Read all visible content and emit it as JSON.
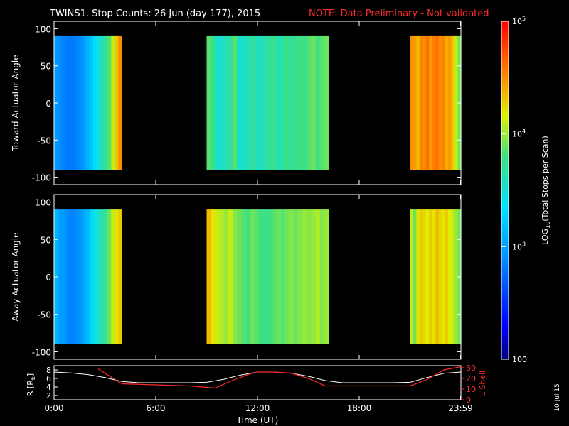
{
  "title_main": "TWINS1. Stop Counts: 26 Jun (day 177), 2015",
  "title_note": "NOTE: Data Preliminary - Not validated",
  "colors": {
    "note": "#ff2a2a",
    "r_line": "#ffffff",
    "l_line": "#ff2a2a"
  },
  "generated_date": "10 Jul 15",
  "colorbar": {
    "label": "LOG10(Total Stops per Scan)",
    "label_prefix": "LOG",
    "label_sub": "10",
    "label_suffix": "(Total Stops per Scan)",
    "scale": "log",
    "range": [
      100,
      100000
    ],
    "ticks": [
      {
        "value": 100,
        "label": "100"
      },
      {
        "value": 1000,
        "label": "10",
        "exp": "3"
      },
      {
        "value": 10000,
        "label": "10",
        "exp": "4"
      },
      {
        "value": 100000,
        "label": "10",
        "exp": "5"
      }
    ]
  },
  "chart_data": [
    {
      "type": "heatmap",
      "ylabel": "Toward Actuator Angle",
      "ylim": [
        -110,
        110
      ],
      "y_ticks": [
        "100",
        "50",
        "0",
        "-50",
        "-100"
      ],
      "y_tick_values": [
        100,
        50,
        0,
        -50,
        -100
      ],
      "data_angle_range": [
        -90,
        90
      ],
      "x_range_hours": [
        0,
        24
      ],
      "segments": [
        {
          "start_hour": 0.0,
          "end_hour": 4.0,
          "log_profile": [
            2.95,
            2.9,
            2.85,
            2.82,
            2.8,
            2.82,
            2.85,
            2.9,
            3.0,
            3.1,
            3.2,
            3.35,
            3.5,
            3.6,
            3.7,
            3.85,
            4.1,
            4.3,
            4.5
          ]
        },
        {
          "start_hour": 9.0,
          "end_hour": 16.2,
          "log_profile": [
            3.85,
            3.75,
            3.5,
            3.55,
            3.6,
            3.7,
            3.85,
            3.5,
            3.55,
            3.6,
            3.7,
            3.6,
            3.55,
            3.65,
            3.7,
            3.75,
            3.6,
            3.65,
            3.8,
            3.7,
            3.75,
            3.8,
            3.75,
            3.85,
            3.9,
            3.8,
            3.85,
            3.9
          ]
        },
        {
          "start_hour": 21.0,
          "end_hour": 24.0,
          "log_profile": [
            4.5,
            4.45,
            4.35,
            4.55,
            4.5,
            4.6,
            4.45,
            4.55,
            4.6,
            4.5,
            4.55,
            4.4,
            4.45,
            4.3,
            4.1,
            3.9
          ]
        }
      ]
    },
    {
      "type": "heatmap",
      "ylabel": "Away Actuator Angle",
      "ylim": [
        -110,
        110
      ],
      "y_ticks": [
        "100",
        "50",
        "0",
        "-50",
        "-100"
      ],
      "y_tick_values": [
        100,
        50,
        0,
        -50,
        -100
      ],
      "data_angle_range": [
        -90,
        90
      ],
      "x_range_hours": [
        0,
        24
      ],
      "segments": [
        {
          "start_hour": 0.0,
          "end_hour": 4.0,
          "log_profile": [
            3.1,
            3.0,
            2.95,
            2.9,
            2.85,
            2.85,
            2.9,
            2.95,
            3.05,
            3.15,
            3.3,
            3.45,
            3.55,
            3.65,
            3.75,
            3.9,
            4.1,
            4.2,
            4.3
          ]
        },
        {
          "start_hour": 9.0,
          "end_hour": 16.2,
          "log_profile": [
            4.35,
            4.2,
            4.1,
            4.05,
            4.0,
            4.1,
            3.95,
            3.9,
            3.85,
            3.8,
            3.9,
            3.85,
            3.8,
            3.75,
            3.8,
            3.85,
            3.9,
            3.85,
            3.9,
            3.95,
            3.9,
            3.95,
            4.0,
            3.95,
            4.0,
            4.05,
            3.95,
            4.0
          ]
        },
        {
          "start_hour": 21.0,
          "end_hour": 24.0,
          "log_profile": [
            4.1,
            3.9,
            4.2,
            4.3,
            4.25,
            4.15,
            4.3,
            4.2,
            4.35,
            4.25,
            4.2,
            4.3,
            4.15,
            4.1,
            4.0,
            3.9
          ]
        }
      ]
    },
    {
      "type": "line",
      "xlabel": "Time (UT)",
      "x_ticks": [
        "0:00",
        "6:00",
        "12:00",
        "18:00",
        "23:59"
      ],
      "x_tick_values": [
        0,
        6,
        12,
        18,
        23.98
      ],
      "y_left_label": "R [RE]",
      "y_left_label_main": "R [R",
      "y_left_label_sub": "E",
      "y_left_label_end": "]",
      "y_left_ticks": [
        "8",
        "6",
        "4",
        "2"
      ],
      "y_left_tick_values": [
        8,
        6,
        4,
        2
      ],
      "y_left_range": [
        1,
        9
      ],
      "y_right_label": "L Shell",
      "y_right_ticks": [
        "30",
        "20",
        "10",
        "0"
      ],
      "y_right_tick_values": [
        30,
        20,
        10,
        0
      ],
      "y_right_range": [
        0,
        32
      ],
      "series": [
        {
          "name": "R",
          "x": [
            0,
            1,
            2,
            3,
            4,
            5,
            6,
            7,
            8,
            9,
            10,
            11,
            12,
            13,
            14,
            15,
            16,
            17,
            18,
            19,
            20,
            21,
            22,
            23,
            24
          ],
          "y": [
            7.5,
            7.3,
            6.9,
            6.2,
            5.3,
            5.0,
            5.0,
            5.0,
            5.0,
            5.1,
            5.8,
            6.8,
            7.5,
            7.5,
            7.2,
            6.5,
            5.5,
            5.0,
            5.0,
            5.0,
            5.0,
            5.1,
            6.2,
            7.2,
            7.5
          ]
        },
        {
          "name": "L Shell",
          "x": [
            2.6,
            4.0,
            6.0,
            8.0,
            9.5,
            10.5,
            11.5,
            12.0,
            13.0,
            14.0,
            15.0,
            16.0,
            17.0,
            18.0,
            19.0,
            20.0,
            21.0,
            22.0,
            23.0,
            24.0
          ],
          "y": [
            29,
            15,
            14,
            13,
            11,
            18,
            24,
            26,
            26,
            25,
            20,
            13,
            13,
            13,
            13,
            13,
            13,
            19,
            28,
            31
          ]
        }
      ]
    }
  ]
}
